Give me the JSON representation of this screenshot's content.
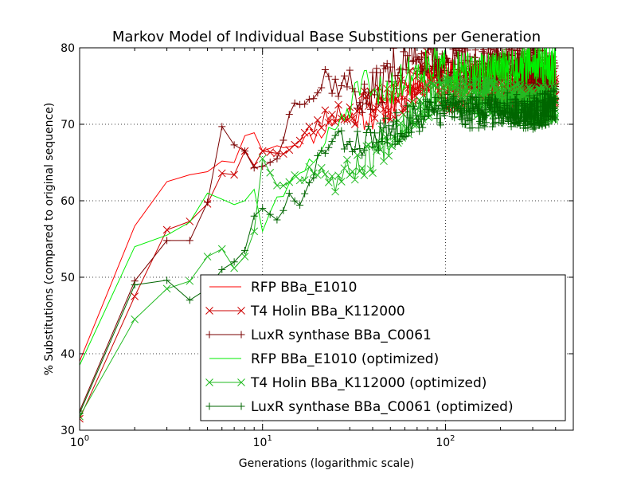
{
  "chart_data": {
    "type": "line",
    "title": "Markov Model of Individual Base Substitions per Generation",
    "xlabel": "Generations (logarithmic scale)",
    "ylabel": "% Substitutions (compared to original sequence)",
    "x_scale": "log",
    "xlim": [
      1,
      500
    ],
    "ylim": [
      30,
      80
    ],
    "x_ticks": [
      1,
      10,
      100
    ],
    "x_tick_labels": [
      {
        "base": "10",
        "exp": "0"
      },
      {
        "base": "10",
        "exp": "1"
      },
      {
        "base": "10",
        "exp": "2"
      }
    ],
    "y_ticks": [
      30,
      40,
      50,
      60,
      70,
      80
    ],
    "y_tick_labels": [
      "30",
      "40",
      "50",
      "60",
      "70",
      "80"
    ],
    "grid": true,
    "legend_position": "lower-right",
    "series": [
      {
        "name": "RFP BBa_E1010",
        "color": "#ff0000",
        "marker": "none",
        "x": [
          1,
          2,
          3,
          4,
          5,
          6,
          7,
          8,
          9,
          10,
          12,
          15,
          20,
          25,
          30,
          40,
          50,
          60,
          70,
          80,
          100,
          150,
          200,
          300,
          400
        ],
        "y": [
          39,
          56.7,
          62.5,
          63.4,
          63.8,
          65.2,
          65.0,
          68.5,
          68.9,
          66.5,
          67.2,
          67.5,
          68.6,
          71.0,
          70.8,
          71.3,
          72.5,
          75.2,
          74.5,
          76.0,
          76.8,
          76.0,
          73.5,
          74.5,
          74.0
        ],
        "noise": 2.2,
        "seed": 11
      },
      {
        "name": "T4 Holin BBa_K112000",
        "color": "#cc0000",
        "marker": "x",
        "x": [
          1,
          2,
          3,
          4,
          5,
          6,
          7,
          8,
          9,
          10,
          12,
          15,
          20,
          25,
          30,
          40,
          50,
          60,
          70,
          80,
          100,
          150,
          200,
          300,
          400
        ],
        "y": [
          31.5,
          47.5,
          56.2,
          57.3,
          59.6,
          63.6,
          63.4,
          66.5,
          64.6,
          66.5,
          66.2,
          67.2,
          70.0,
          71.6,
          71.6,
          73.0,
          72.8,
          73.5,
          76.5,
          77.0,
          74.0,
          75.5,
          76.0,
          75.0,
          75.0
        ],
        "noise": 2.6,
        "seed": 23
      },
      {
        "name": "LuxR synthase BBa_C0061",
        "color": "#7a0000",
        "marker": "+",
        "x": [
          1,
          2,
          3,
          4,
          5,
          6,
          7,
          8,
          9,
          10,
          12,
          15,
          20,
          22,
          25,
          30,
          35,
          40,
          50,
          60,
          70,
          80,
          100,
          150,
          200,
          300,
          400
        ],
        "y": [
          32.5,
          49.5,
          54.8,
          54.8,
          59.8,
          69.7,
          67.3,
          66.5,
          64.3,
          64.5,
          65.5,
          73.5,
          74.0,
          76.5,
          75.0,
          75.5,
          73.0,
          74.0,
          77.0,
          78.0,
          79.5,
          78.5,
          78.0,
          77.0,
          78.0,
          77.5,
          76.0
        ],
        "noise": 2.8,
        "seed": 37
      },
      {
        "name": "RFP BBa_E1010 (optimized)",
        "color": "#00ee00",
        "marker": "none",
        "x": [
          1,
          2,
          3,
          4,
          5,
          6,
          7,
          8,
          9,
          10,
          11,
          12,
          14,
          16,
          20,
          25,
          30,
          35,
          40,
          50,
          60,
          80,
          100,
          150,
          200,
          300,
          400
        ],
        "y": [
          38.5,
          54.0,
          55.5,
          57.2,
          61.0,
          60.2,
          59.5,
          60.0,
          61.5,
          56.0,
          58.5,
          60.5,
          61.5,
          63.5,
          66.0,
          69.5,
          72.5,
          75.5,
          73.0,
          75.0,
          76.0,
          78.0,
          77.0,
          76.5,
          77.0,
          78.0,
          77.5
        ],
        "noise": 2.8,
        "seed": 51
      },
      {
        "name": "T4 Holin BBa_K112000 (optimized)",
        "color": "#22bb22",
        "marker": "x",
        "x": [
          1,
          2,
          3,
          4,
          5,
          6,
          7,
          8,
          9,
          10,
          12,
          15,
          20,
          25,
          30,
          40,
          50,
          60,
          70,
          80,
          100,
          150,
          200,
          300,
          400
        ],
        "y": [
          31.8,
          44.5,
          48.5,
          49.5,
          52.7,
          53.7,
          51.2,
          52.7,
          56.0,
          65.5,
          62.0,
          63.0,
          64.5,
          62.5,
          64.0,
          66.0,
          68.5,
          70.5,
          72.0,
          73.0,
          74.0,
          73.5,
          73.5,
          72.5,
          73.0
        ],
        "noise": 2.4,
        "seed": 67
      },
      {
        "name": "LuxR synthase BBa_C0061 (optimized)",
        "color": "#006600",
        "marker": "+",
        "x": [
          1,
          2,
          3,
          4,
          5,
          6,
          7,
          8,
          9,
          10,
          12,
          14,
          16,
          18,
          20,
          25,
          30,
          40,
          50,
          60,
          80,
          100,
          150,
          200,
          300,
          400
        ],
        "y": [
          32.2,
          49.0,
          49.6,
          47.0,
          48.5,
          51.0,
          52.0,
          53.5,
          58.0,
          59.0,
          57.5,
          60.5,
          59.0,
          62.0,
          65.5,
          68.0,
          67.5,
          68.0,
          69.0,
          70.5,
          71.5,
          72.0,
          71.5,
          72.0,
          71.5,
          72.5
        ],
        "noise": 2.2,
        "seed": 83
      }
    ]
  }
}
